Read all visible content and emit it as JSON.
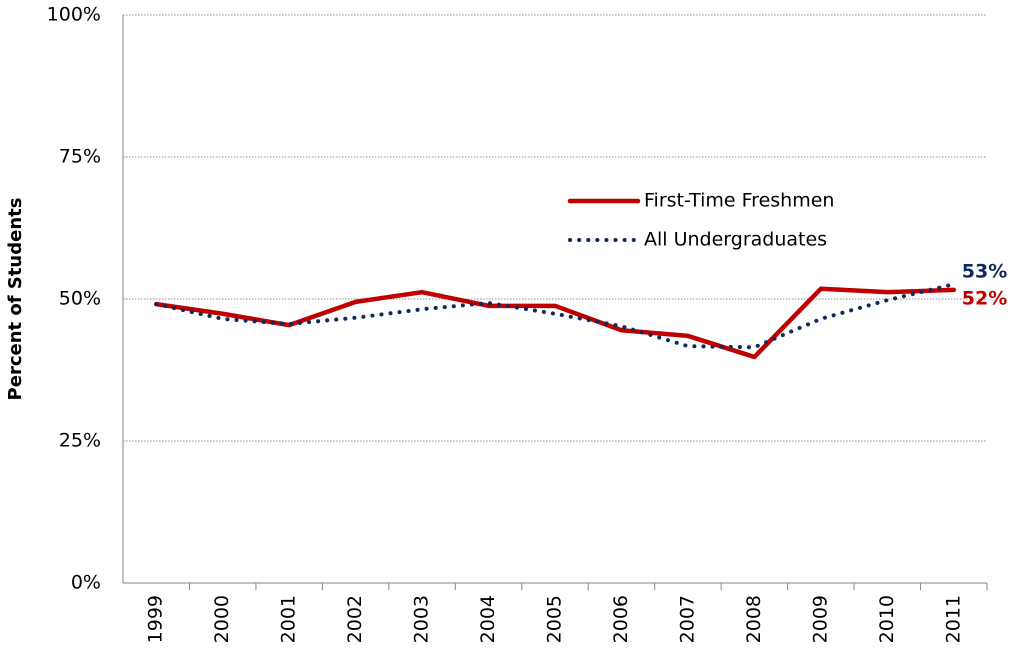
{
  "chart_data": {
    "type": "line",
    "y_label": "Percent of Students",
    "categories": [
      "1999",
      "2000",
      "2001",
      "2002",
      "2003",
      "2004",
      "2005",
      "2006",
      "2007",
      "2008",
      "2009",
      "2010",
      "2011"
    ],
    "series": [
      {
        "name": "First-Time Freshmen",
        "color": "#c00000",
        "style": "solid",
        "values": [
          49.1,
          47.4,
          45.4,
          49.5,
          51.2,
          48.8,
          48.8,
          44.5,
          43.5,
          39.8,
          51.8,
          51.2,
          51.6
        ],
        "value_labels": [
          null,
          null,
          null,
          null,
          null,
          null,
          null,
          null,
          null,
          null,
          null,
          null,
          "52%"
        ]
      },
      {
        "name": "All Undergraduates",
        "color": "#0f2a5c",
        "style": "dotted",
        "values": [
          49.1,
          46.5,
          45.6,
          46.7,
          48.2,
          49.3,
          47.4,
          45.2,
          41.7,
          41.5,
          46.5,
          49.8,
          52.6
        ],
        "value_labels": [
          null,
          null,
          null,
          null,
          null,
          null,
          null,
          null,
          null,
          null,
          null,
          null,
          "53%"
        ]
      }
    ],
    "ylim": [
      0,
      100
    ],
    "yticks": [
      {
        "value": 0,
        "label": "0%"
      },
      {
        "value": 25,
        "label": "25%"
      },
      {
        "value": 50,
        "label": "50%"
      },
      {
        "value": 75,
        "label": "75%"
      },
      {
        "value": 100,
        "label": "100%"
      }
    ],
    "grid": true
  }
}
